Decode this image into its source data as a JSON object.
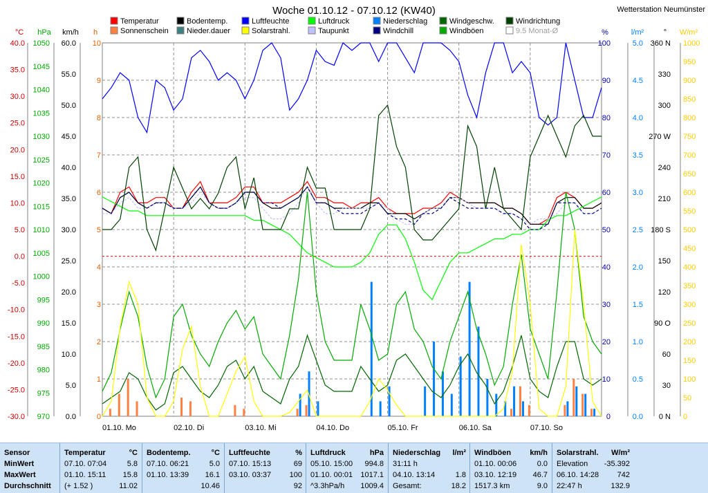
{
  "station": "Wetterstation Neumünster",
  "chart_data": {
    "type": "line",
    "title": "Woche 01.10.12 - 07.10.12 (KW40)",
    "x_ticks": [
      "01.10. Mo",
      "02.10. Di",
      "03.10. Mi",
      "04.10. Do",
      "05.10. Fr",
      "06.10. Sa",
      "07.10. So"
    ],
    "axes": {
      "temp": {
        "unit": "°C",
        "min": -30,
        "max": 40,
        "step": 5,
        "color": "#cc0000"
      },
      "pressure": {
        "unit": "hPa",
        "min": 970,
        "max": 1050,
        "step": 5,
        "color": "#00aa00"
      },
      "wind": {
        "unit": "km/h",
        "min": 0,
        "max": 60,
        "step": 5,
        "color": "#000000"
      },
      "sunshine": {
        "unit": "h",
        "min": 0,
        "max": 10,
        "step": 1,
        "color": "#e06000"
      },
      "humidity": {
        "unit": "%",
        "min": 0,
        "max": 100,
        "step": 10,
        "color": "#0000aa"
      },
      "rain": {
        "unit": "l/m²",
        "min": 0,
        "max": 5,
        "step": 0.5,
        "color": "#0080ff"
      },
      "direction": {
        "unit": "°",
        "min": 0,
        "max": 360,
        "step": 30,
        "color": "#000000"
      },
      "solar": {
        "unit": "W/m²",
        "min": 0,
        "max": 1000,
        "step": 50,
        "color": "#ffcc00"
      }
    },
    "direction_labels": {
      "0": "N",
      "90": "O",
      "180": "S",
      "270": "W",
      "360": "N"
    },
    "legend": [
      {
        "name": "Temperatur",
        "color": "#ff0000"
      },
      {
        "name": "Sonnenschein",
        "color": "#ff8040"
      },
      {
        "name": "Bodentemp.",
        "color": "#000000"
      },
      {
        "name": "Nieder.dauer",
        "color": "#408080"
      },
      {
        "name": "Luftfeuchte",
        "color": "#0000ff"
      },
      {
        "name": "Solarstrahl.",
        "color": "#ffff00"
      },
      {
        "name": "Luftdruck",
        "color": "#00ff00"
      },
      {
        "name": "Taupunkt",
        "color": "#c0c0ff"
      },
      {
        "name": "Niederschlag",
        "color": "#0080ff"
      },
      {
        "name": "Windchill",
        "color": "#000080"
      },
      {
        "name": "Windgeschw.",
        "color": "#006600"
      },
      {
        "name": "Windböen",
        "color": "#00aa00"
      },
      {
        "name": "Windrichtung",
        "color": "#004000"
      },
      {
        "name": "9.5 Monat-Ø",
        "color": "#c0c0c0"
      }
    ],
    "series": [
      {
        "name": "Temperatur",
        "axis": "temp",
        "values": [
          9,
          8,
          12,
          13,
          10,
          10,
          11,
          11,
          9,
          9,
          12,
          14,
          10,
          10,
          10,
          11,
          13,
          13,
          10,
          10,
          10,
          11,
          12,
          14,
          11,
          11,
          10,
          10,
          9,
          10,
          10,
          11,
          9,
          8,
          8,
          8,
          9,
          9,
          10,
          12,
          11,
          10,
          10,
          10,
          10,
          9,
          9,
          8,
          6,
          6,
          7,
          11,
          12,
          11,
          9,
          9,
          10
        ]
      },
      {
        "name": "Bodentemp.",
        "axis": "temp",
        "values": [
          9,
          8,
          11,
          12,
          10,
          9,
          10,
          10,
          9,
          9,
          11,
          13,
          10,
          9,
          9,
          10,
          12,
          12,
          10,
          9,
          9,
          10,
          11,
          13,
          10,
          10,
          9,
          9,
          9,
          9,
          10,
          10,
          8,
          8,
          8,
          7,
          8,
          9,
          9,
          11,
          11,
          10,
          10,
          10,
          10,
          9,
          9,
          8,
          6,
          6,
          6,
          10,
          11,
          11,
          9,
          9,
          10
        ]
      },
      {
        "name": "Taupunkt",
        "axis": "temp",
        "values": [
          8,
          8,
          10,
          11,
          9,
          9,
          10,
          10,
          9,
          9,
          10,
          12,
          10,
          9,
          9,
          10,
          11,
          11,
          9,
          7,
          7,
          8,
          10,
          13,
          10,
          8,
          8,
          9,
          9,
          9,
          9,
          10,
          9,
          7,
          6,
          6,
          8,
          9,
          9,
          11,
          11,
          10,
          9,
          9,
          9,
          8,
          8,
          7,
          6,
          7,
          7,
          8,
          10,
          10,
          8,
          8,
          9
        ]
      },
      {
        "name": "Luftdruck",
        "axis": "pressure",
        "values": [
          1017,
          1016,
          1015,
          1014,
          1014,
          1013,
          1013,
          1013,
          1013,
          1013,
          1013,
          1013,
          1013,
          1013,
          1013,
          1013,
          1013,
          1012,
          1012,
          1011,
          1010,
          1009,
          1007,
          1005,
          1004,
          1003,
          1002,
          1002,
          1002,
          1003,
          1005,
          1009,
          1011,
          1011,
          1008,
          1003,
          997,
          995,
          999,
          1003,
          1005,
          1005,
          1006,
          1007,
          1008,
          1008,
          1009,
          1009,
          1010,
          1010,
          1012,
          1013,
          1013,
          1014,
          1015,
          1016,
          1017
        ]
      },
      {
        "name": "Luftfeuchte",
        "axis": "humidity",
        "values": [
          85,
          88,
          92,
          90,
          80,
          76,
          90,
          88,
          82,
          85,
          96,
          98,
          95,
          90,
          92,
          90,
          85,
          90,
          98,
          100,
          96,
          82,
          85,
          90,
          98,
          95,
          94,
          100,
          98,
          100,
          100,
          95,
          100,
          100,
          96,
          92,
          100,
          100,
          100,
          98,
          95,
          86,
          80,
          92,
          100,
          100,
          92,
          95,
          92,
          80,
          78,
          80,
          100,
          90,
          80,
          80,
          88
        ]
      },
      {
        "name": "Windgeschw.",
        "axis": "wind",
        "values": [
          2,
          3,
          4,
          7,
          6,
          3,
          1,
          2,
          7,
          8,
          6,
          4,
          3,
          5,
          8,
          9,
          6,
          8,
          4,
          3,
          2,
          6,
          8,
          13,
          9,
          5,
          4,
          4,
          4,
          8,
          6,
          4,
          5,
          9,
          10,
          8,
          6,
          4,
          3,
          5,
          8,
          10,
          7,
          5,
          2,
          4,
          8,
          13,
          6,
          4,
          3,
          8,
          12,
          12,
          6,
          5,
          6
        ]
      },
      {
        "name": "Windböen",
        "axis": "wind",
        "values": [
          4,
          7,
          14,
          20,
          16,
          8,
          3,
          6,
          16,
          18,
          13,
          10,
          8,
          12,
          15,
          17,
          14,
          16,
          10,
          8,
          6,
          13,
          22,
          36,
          20,
          12,
          9,
          9,
          9,
          18,
          14,
          9,
          10,
          18,
          20,
          14,
          12,
          8,
          6,
          12,
          16,
          20,
          14,
          10,
          5,
          8,
          18,
          26,
          14,
          10,
          6,
          20,
          36,
          30,
          16,
          12,
          10
        ]
      },
      {
        "name": "Windchill",
        "axis": "temp",
        "values": [
          9,
          8,
          11,
          12,
          10,
          9,
          10,
          10,
          9,
          9,
          11,
          13,
          10,
          9,
          9,
          10,
          12,
          12,
          10,
          10,
          9,
          10,
          11,
          13,
          10,
          10,
          9,
          8,
          8,
          8,
          9,
          10,
          8,
          7,
          7,
          6,
          8,
          8,
          9,
          11,
          10,
          9,
          9,
          9,
          9,
          8,
          8,
          7,
          5,
          5,
          6,
          10,
          10,
          10,
          8,
          8,
          9
        ]
      },
      {
        "name": "Windrichtung",
        "axis": "direction",
        "values": [
          180,
          180,
          190,
          240,
          250,
          180,
          160,
          200,
          240,
          220,
          200,
          210,
          200,
          215,
          240,
          250,
          200,
          230,
          180,
          180,
          180,
          200,
          200,
          240,
          220,
          220,
          180,
          180,
          180,
          180,
          200,
          290,
          300,
          260,
          240,
          180,
          170,
          170,
          180,
          190,
          200,
          280,
          260,
          200,
          240,
          200,
          190,
          180,
          250,
          270,
          290,
          270,
          250,
          280,
          290,
          270,
          270
        ]
      },
      {
        "name": "Solarstrahl.",
        "axis": "solar",
        "values": [
          0,
          40,
          240,
          360,
          300,
          50,
          0,
          0,
          40,
          180,
          240,
          80,
          0,
          0,
          60,
          120,
          160,
          40,
          0,
          0,
          0,
          10,
          40,
          70,
          0,
          0,
          0,
          0,
          0,
          0,
          40,
          100,
          70,
          30,
          0,
          0,
          0,
          0,
          0,
          0,
          0,
          0,
          0,
          0,
          0,
          20,
          120,
          460,
          300,
          20,
          0,
          0,
          80,
          500,
          300,
          40,
          0
        ]
      }
    ],
    "bars": [
      {
        "name": "Sonnenschein",
        "axis": "sunshine",
        "values": [
          0,
          0.2,
          0.6,
          1.0,
          0.4,
          0,
          0,
          0,
          0,
          0.5,
          0.4,
          0,
          0,
          0,
          0,
          0.3,
          0.2,
          0,
          0,
          0,
          0,
          0,
          0.2,
          0.3,
          0,
          0,
          0,
          0,
          0,
          0,
          0,
          0,
          0,
          0,
          0,
          0,
          0,
          0,
          0,
          0,
          0,
          0,
          0,
          0,
          0,
          0,
          0.2,
          0.8,
          0.3,
          0,
          0,
          0,
          0.3,
          1.0,
          0.6,
          0.2,
          0
        ]
      },
      {
        "name": "Niederschlag",
        "axis": "rain",
        "values": [
          0,
          0,
          0,
          0,
          0,
          0,
          0,
          0,
          0,
          0,
          0,
          0,
          0,
          0,
          0,
          0,
          0,
          0,
          0,
          0,
          0,
          0,
          0.3,
          0.6,
          0.2,
          0,
          0,
          0,
          0,
          0,
          1.8,
          0.2,
          0.4,
          0,
          0,
          0,
          0.4,
          1.0,
          0.6,
          0.3,
          0.8,
          1.8,
          1.2,
          0.5,
          0.3,
          0.2,
          0.4,
          0.2,
          0,
          0,
          0,
          0,
          0.2,
          0.4,
          0.3,
          0.1,
          0
        ]
      }
    ]
  },
  "stats": {
    "headers": {
      "sensor": "Sensor",
      "min": "MinWert",
      "max": "MaxWert",
      "avg": "Durchschnitt"
    },
    "columns": [
      {
        "title": "Temperatur",
        "unit": "°C",
        "min": [
          "07.10.  07:04",
          "5.8"
        ],
        "max": [
          "01.10.  15:11",
          "15.8"
        ],
        "avg": [
          "(+ 1.52 )",
          "11.02"
        ]
      },
      {
        "title": "Bodentemp.",
        "unit": "°C",
        "min": [
          "07.10.  06:21",
          "5.0"
        ],
        "max": [
          "01.10.  13:39",
          "16.1"
        ],
        "avg": [
          "",
          "10.46"
        ]
      },
      {
        "title": "Luftfeuchte",
        "unit": "%",
        "min": [
          "07.10.  15:13",
          "69"
        ],
        "max": [
          "03.10.  03:37",
          "100"
        ],
        "avg": [
          "",
          "92"
        ]
      },
      {
        "title": "Luftdruck",
        "unit": "hPa",
        "min": [
          "05.10.  15:00",
          "994.8"
        ],
        "max": [
          "01.10.  00:01",
          "1017.1"
        ],
        "avg": [
          "^3.3hPa/h",
          "1009.4"
        ]
      },
      {
        "title": "Niederschlag",
        "unit": "l/m²",
        "min": [
          "31:11 h",
          ""
        ],
        "max": [
          "04.10.  13:14",
          "1.8"
        ],
        "avg": [
          "Gesamt:",
          "18.2"
        ]
      },
      {
        "title": "Windböen",
        "unit": "km/h",
        "min": [
          "01.10.  00:06",
          "0.0"
        ],
        "max": [
          "03.10.  12:19",
          "46.7"
        ],
        "avg": [
          "1517.3 km",
          "9.0"
        ]
      },
      {
        "title": "Solarstrahl.",
        "unit": "W/m²",
        "min": [
          "Elevation",
          "-35.392"
        ],
        "max": [
          "06.10.  14:28",
          "742"
        ],
        "avg": [
          "22:47 h",
          "132.9"
        ]
      }
    ]
  }
}
